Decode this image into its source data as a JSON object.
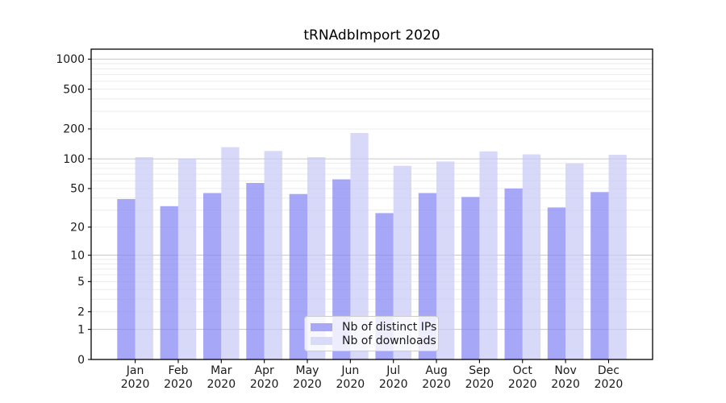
{
  "chart_data": {
    "type": "bar",
    "title": "tRNAdbImport 2020",
    "categories": [
      "Jan",
      "Feb",
      "Mar",
      "Apr",
      "May",
      "Jun",
      "Jul",
      "Aug",
      "Sep",
      "Oct",
      "Nov",
      "Dec"
    ],
    "category_year_line": "2020",
    "series": [
      {
        "name": "Nb of distinct IPs",
        "swatch_color": "#a8a8f7",
        "fill": "rgba(133,133,244,0.72)",
        "values": [
          39,
          33,
          45,
          57,
          44,
          62,
          28,
          45,
          41,
          50,
          32,
          46
        ]
      },
      {
        "name": "Nb of downloads",
        "swatch_color": "#dadaf9",
        "fill": "rgba(201,201,247,0.72)",
        "values": [
          104,
          101,
          131,
          120,
          104,
          182,
          85,
          94,
          119,
          111,
          90,
          110
        ]
      }
    ],
    "xlabel": "",
    "ylabel": "",
    "y_scale": "log1p",
    "y_ticks": [
      0,
      1,
      2,
      5,
      10,
      20,
      50,
      100,
      200,
      500,
      1000
    ],
    "ylim": [
      0,
      1280
    ],
    "grid": true,
    "legend_position": "lower center",
    "colors": {
      "background": "#ffffff",
      "grid_minor": "#ececec",
      "grid_major": "#c6c6c6",
      "spine": "#000000",
      "text": "#1a1a1a"
    }
  }
}
